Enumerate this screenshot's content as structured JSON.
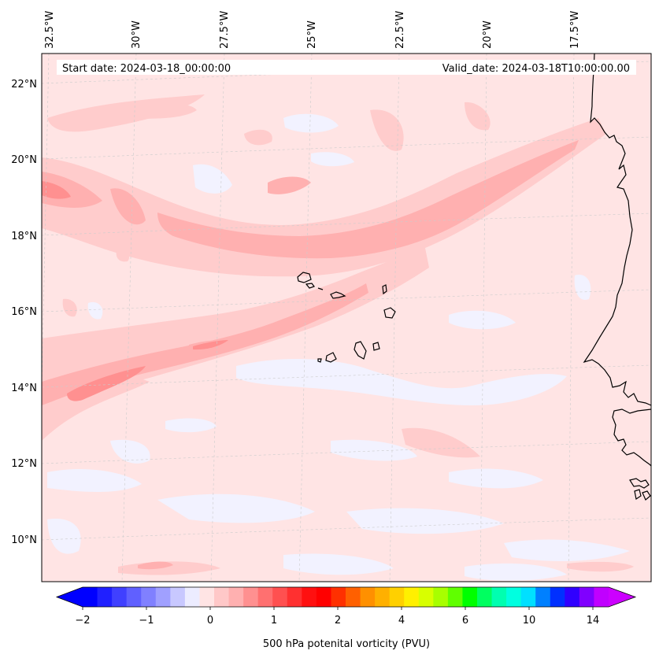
{
  "map": {
    "start_date_label": "Start date: 2024-03-18_00:00:00",
    "valid_date_label": "Valid_date: 2024-03-18T10:00:00.00",
    "lon_labels": [
      "32.5°W",
      "30°W",
      "27.5°W",
      "25°W",
      "22.5°W",
      "20°W",
      "17.5°W"
    ],
    "lat_labels": [
      "22°N",
      "20°N",
      "18°N",
      "16°N",
      "14°N",
      "12°N",
      "10°N"
    ],
    "colors": {
      "background_pv": "#ffe4e4",
      "pv_low": "#ffcccc",
      "pv_mid": "#ffb0b0",
      "pv_high": "#ff9090",
      "pv_negative": "#f2f2ff",
      "coastline": "#000000"
    }
  },
  "colorbar": {
    "label": "500 hPa potenital vorticity (PVU)",
    "ticks": [
      "−2",
      "−1",
      "0",
      "1",
      "2",
      "4",
      "6",
      "10",
      "14"
    ],
    "colors": [
      "#0000ff",
      "#2020ff",
      "#4040ff",
      "#6060ff",
      "#8080ff",
      "#a0a0ff",
      "#c8c8ff",
      "#ececff",
      "#ffe4e4",
      "#ffc8c8",
      "#ffb0b0",
      "#ff9090",
      "#ff7070",
      "#ff5050",
      "#ff3030",
      "#ff1010",
      "#ff0000",
      "#ff3000",
      "#ff6000",
      "#ff9000",
      "#ffb000",
      "#ffd000",
      "#fff000",
      "#d8ff00",
      "#a8ff00",
      "#60ff00",
      "#00ff00",
      "#00ff60",
      "#00ffb0",
      "#00ffe0",
      "#00e0ff",
      "#0080ff",
      "#0030ff",
      "#3000ff",
      "#8000ff",
      "#c000ff"
    ],
    "min_color": "#0000ff",
    "max_color": "#cc00ff"
  }
}
